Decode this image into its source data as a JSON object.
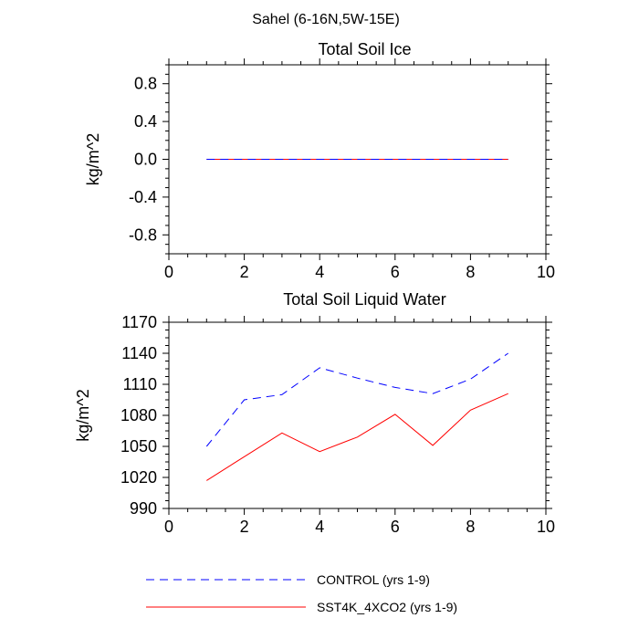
{
  "figure": {
    "title": "Sahel (6-16N,5W-15E)"
  },
  "legend": {
    "placement": "bottom",
    "entries": [
      {
        "label": "CONTROL (yrs 1-9)",
        "color": "#0000ff",
        "style": "dashed"
      },
      {
        "label": "SST4K_4XCO2 (yrs 1-9)",
        "color": "#ff0000",
        "style": "solid"
      }
    ]
  },
  "chart_data": [
    {
      "type": "line",
      "title": "Total Soil Ice",
      "xlabel": "",
      "ylabel": "kg/m^2",
      "xlim": [
        0,
        10
      ],
      "ylim": [
        -1,
        1
      ],
      "xticks": [
        0,
        2,
        4,
        6,
        8,
        10
      ],
      "xtick_labels": [
        "0",
        "2",
        "4",
        "6",
        "8",
        "10"
      ],
      "yticks": [
        -0.8,
        -0.4,
        0.0,
        0.4,
        0.8
      ],
      "ytick_labels": [
        "-0.8",
        "-0.4",
        "0.0",
        "0.4",
        "0.8"
      ],
      "grid": false,
      "x": [
        1,
        2,
        3,
        4,
        5,
        6,
        7,
        8,
        9
      ],
      "series": [
        {
          "name": "CONTROL (yrs 1-9)",
          "color": "#0000ff",
          "style": "dashed",
          "values": [
            0,
            0,
            0,
            0,
            0,
            0,
            0,
            0,
            0
          ]
        },
        {
          "name": "SST4K_4XCO2 (yrs 1-9)",
          "color": "#ff0000",
          "style": "solid",
          "values": [
            0,
            0,
            0,
            0,
            0,
            0,
            0,
            0,
            0
          ]
        }
      ]
    },
    {
      "type": "line",
      "title": "Total Soil Liquid Water",
      "xlabel": "",
      "ylabel": "kg/m^2",
      "xlim": [
        0,
        10
      ],
      "ylim": [
        990,
        1170
      ],
      "xticks": [
        0,
        2,
        4,
        6,
        8,
        10
      ],
      "xtick_labels": [
        "0",
        "2",
        "4",
        "6",
        "8",
        "10"
      ],
      "yticks": [
        990,
        1020,
        1050,
        1080,
        1110,
        1140,
        1170
      ],
      "ytick_labels": [
        "990",
        "1020",
        "1050",
        "1080",
        "1110",
        "1140",
        "1170"
      ],
      "grid": false,
      "x": [
        1,
        2,
        3,
        4,
        5,
        6,
        7,
        8,
        9
      ],
      "series": [
        {
          "name": "CONTROL (yrs 1-9)",
          "color": "#0000ff",
          "style": "dashed",
          "values": [
            1050,
            1095,
            1100,
            1126,
            1116,
            1107,
            1101,
            1115,
            1140
          ]
        },
        {
          "name": "SST4K_4XCO2 (yrs 1-9)",
          "color": "#ff0000",
          "style": "solid",
          "values": [
            1017,
            1040,
            1063,
            1045,
            1059,
            1081,
            1051,
            1085,
            1101
          ]
        }
      ]
    }
  ]
}
